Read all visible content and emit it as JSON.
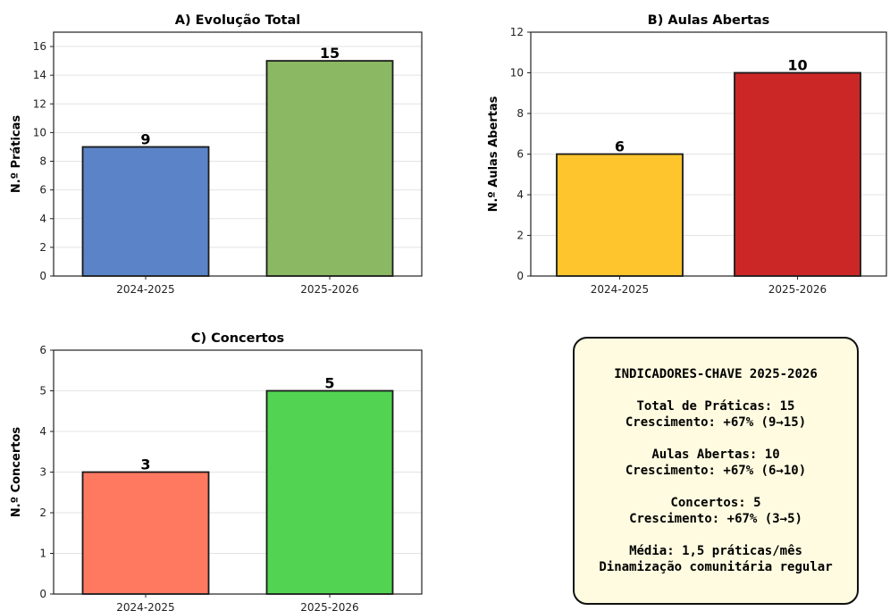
{
  "chart_data": [
    {
      "type": "bar",
      "title": "A) Evolução Total",
      "xlabel": "",
      "ylabel": "N.º Práticas",
      "categories": [
        "2024-2025",
        "2025-2026"
      ],
      "values": [
        9,
        15
      ],
      "value_labels": [
        "9",
        "15"
      ],
      "colors": [
        "#5b84c8",
        "#8bb862"
      ],
      "ylim": [
        0,
        17
      ],
      "yticks": [
        0,
        2,
        4,
        6,
        8,
        10,
        12,
        14,
        16
      ],
      "grid": "y"
    },
    {
      "type": "bar",
      "title": "B) Aulas Abertas",
      "xlabel": "",
      "ylabel": "N.º Aulas Abertas",
      "categories": [
        "2024-2025",
        "2025-2026"
      ],
      "values": [
        6,
        10
      ],
      "value_labels": [
        "6",
        "10"
      ],
      "colors": [
        "#fec52d",
        "#cc2727"
      ],
      "ylim": [
        0,
        12
      ],
      "yticks": [
        0,
        2,
        4,
        6,
        8,
        10,
        12
      ],
      "grid": "y"
    },
    {
      "type": "bar",
      "title": "C) Concertos",
      "xlabel": "",
      "ylabel": "N.º Concertos",
      "categories": [
        "2024-2025",
        "2025-2026"
      ],
      "values": [
        3,
        5
      ],
      "value_labels": [
        "3",
        "5"
      ],
      "colors": [
        "#fe7960",
        "#52d452"
      ],
      "ylim": [
        0,
        6
      ],
      "yticks": [
        0,
        1,
        2,
        3,
        4,
        5,
        6
      ],
      "grid": "y"
    }
  ],
  "kpi": {
    "title": "INDICADORES-CHAVE 2025-2026",
    "total_line": "Total de Práticas: 15",
    "total_growth": "Crescimento: +67% (9→15)",
    "aulas_line": "Aulas Abertas: 10",
    "aulas_growth": "Crescimento: +67% (6→10)",
    "concertos_line": "Concertos: 5",
    "concertos_growth": "Crescimento: +67% (3→5)",
    "media_line": "Média: 1,5 práticas/mês",
    "dinamizacao_line": "Dinamização comunitária regular"
  }
}
